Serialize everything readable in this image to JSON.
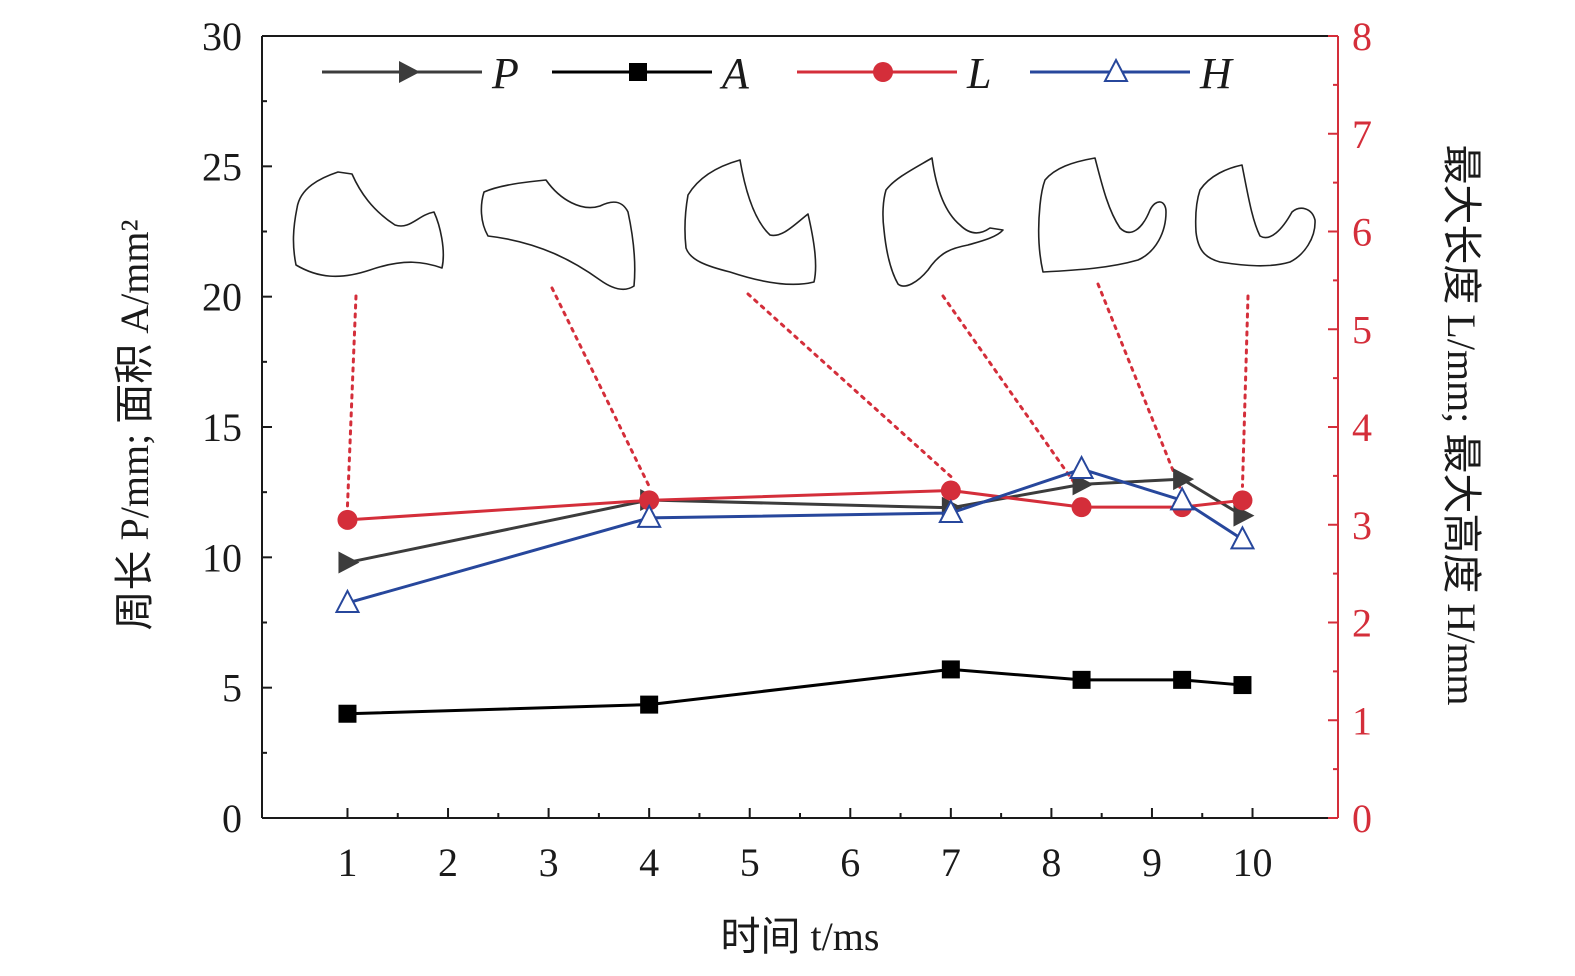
{
  "chart_data": {
    "type": "line",
    "x_title": "时间 t/ms",
    "y_left_title": "周长 P/mm; 面积 A/mm²",
    "y_right_title": "最大长度 L/mm; 最大高度 H/mm",
    "x_ticks": [
      1,
      2,
      3,
      4,
      5,
      6,
      7,
      8,
      9,
      10
    ],
    "x_tick_labels": [
      "1",
      "2",
      "3",
      "4",
      "5",
      "6",
      "7",
      "8",
      "9",
      "10"
    ],
    "y_left_ticks": [
      0,
      5,
      10,
      15,
      20,
      25,
      30
    ],
    "y_left_tick_labels": [
      "0",
      "5",
      "10",
      "15",
      "20",
      "25",
      "30"
    ],
    "y_right_ticks": [
      0,
      1,
      2,
      3,
      4,
      5,
      6,
      7,
      8
    ],
    "y_right_tick_labels": [
      "0",
      "1",
      "2",
      "3",
      "4",
      "5",
      "6",
      "7",
      "8"
    ],
    "ylim_left": [
      0,
      30
    ],
    "ylim_right": [
      0,
      8
    ],
    "x_mapping": {
      "1": 0,
      "2": 1,
      "3": 2,
      "4": 3,
      "5": 4,
      "6": 5,
      "7": 6,
      "8": 7,
      "9": 8,
      "10": 9
    },
    "xlim_index": [
      -0.85,
      9.85
    ],
    "sample_times": [
      1,
      4,
      7,
      8.3,
      9.3,
      9.9
    ],
    "series": [
      {
        "name": "P",
        "axis": "left",
        "color": "#3c3c3c",
        "marker": "triangle-right",
        "x": [
          1,
          4,
          7,
          8.3,
          9.3,
          9.9
        ],
        "values": [
          9.8,
          12.2,
          11.9,
          12.8,
          13.0,
          11.6
        ]
      },
      {
        "name": "A",
        "axis": "left",
        "color": "#000000",
        "marker": "square",
        "x": [
          1,
          4,
          7,
          8.3,
          9.3,
          9.9
        ],
        "values": [
          4.0,
          4.35,
          5.7,
          5.3,
          5.3,
          5.1
        ]
      },
      {
        "name": "L",
        "axis": "right",
        "color": "#d42e3a",
        "marker": "circle",
        "x": [
          1,
          4,
          7,
          8.3,
          9.3,
          9.9
        ],
        "values": [
          3.05,
          3.25,
          3.35,
          3.18,
          3.18,
          3.25
        ]
      },
      {
        "name": "H",
        "axis": "right",
        "color": "#27479c",
        "marker": "triangle-open",
        "x": [
          1,
          4,
          7,
          8.3,
          9.3,
          9.9
        ],
        "values": [
          2.2,
          3.07,
          3.12,
          3.57,
          3.25,
          2.85
        ]
      }
    ],
    "legend": [
      "P",
      "A",
      "L",
      "H"
    ],
    "legend_position": "top",
    "annotations": "six outline sketches of the shape at each sampled time, connected to the L curve by red dotted leader lines",
    "grid": false
  }
}
